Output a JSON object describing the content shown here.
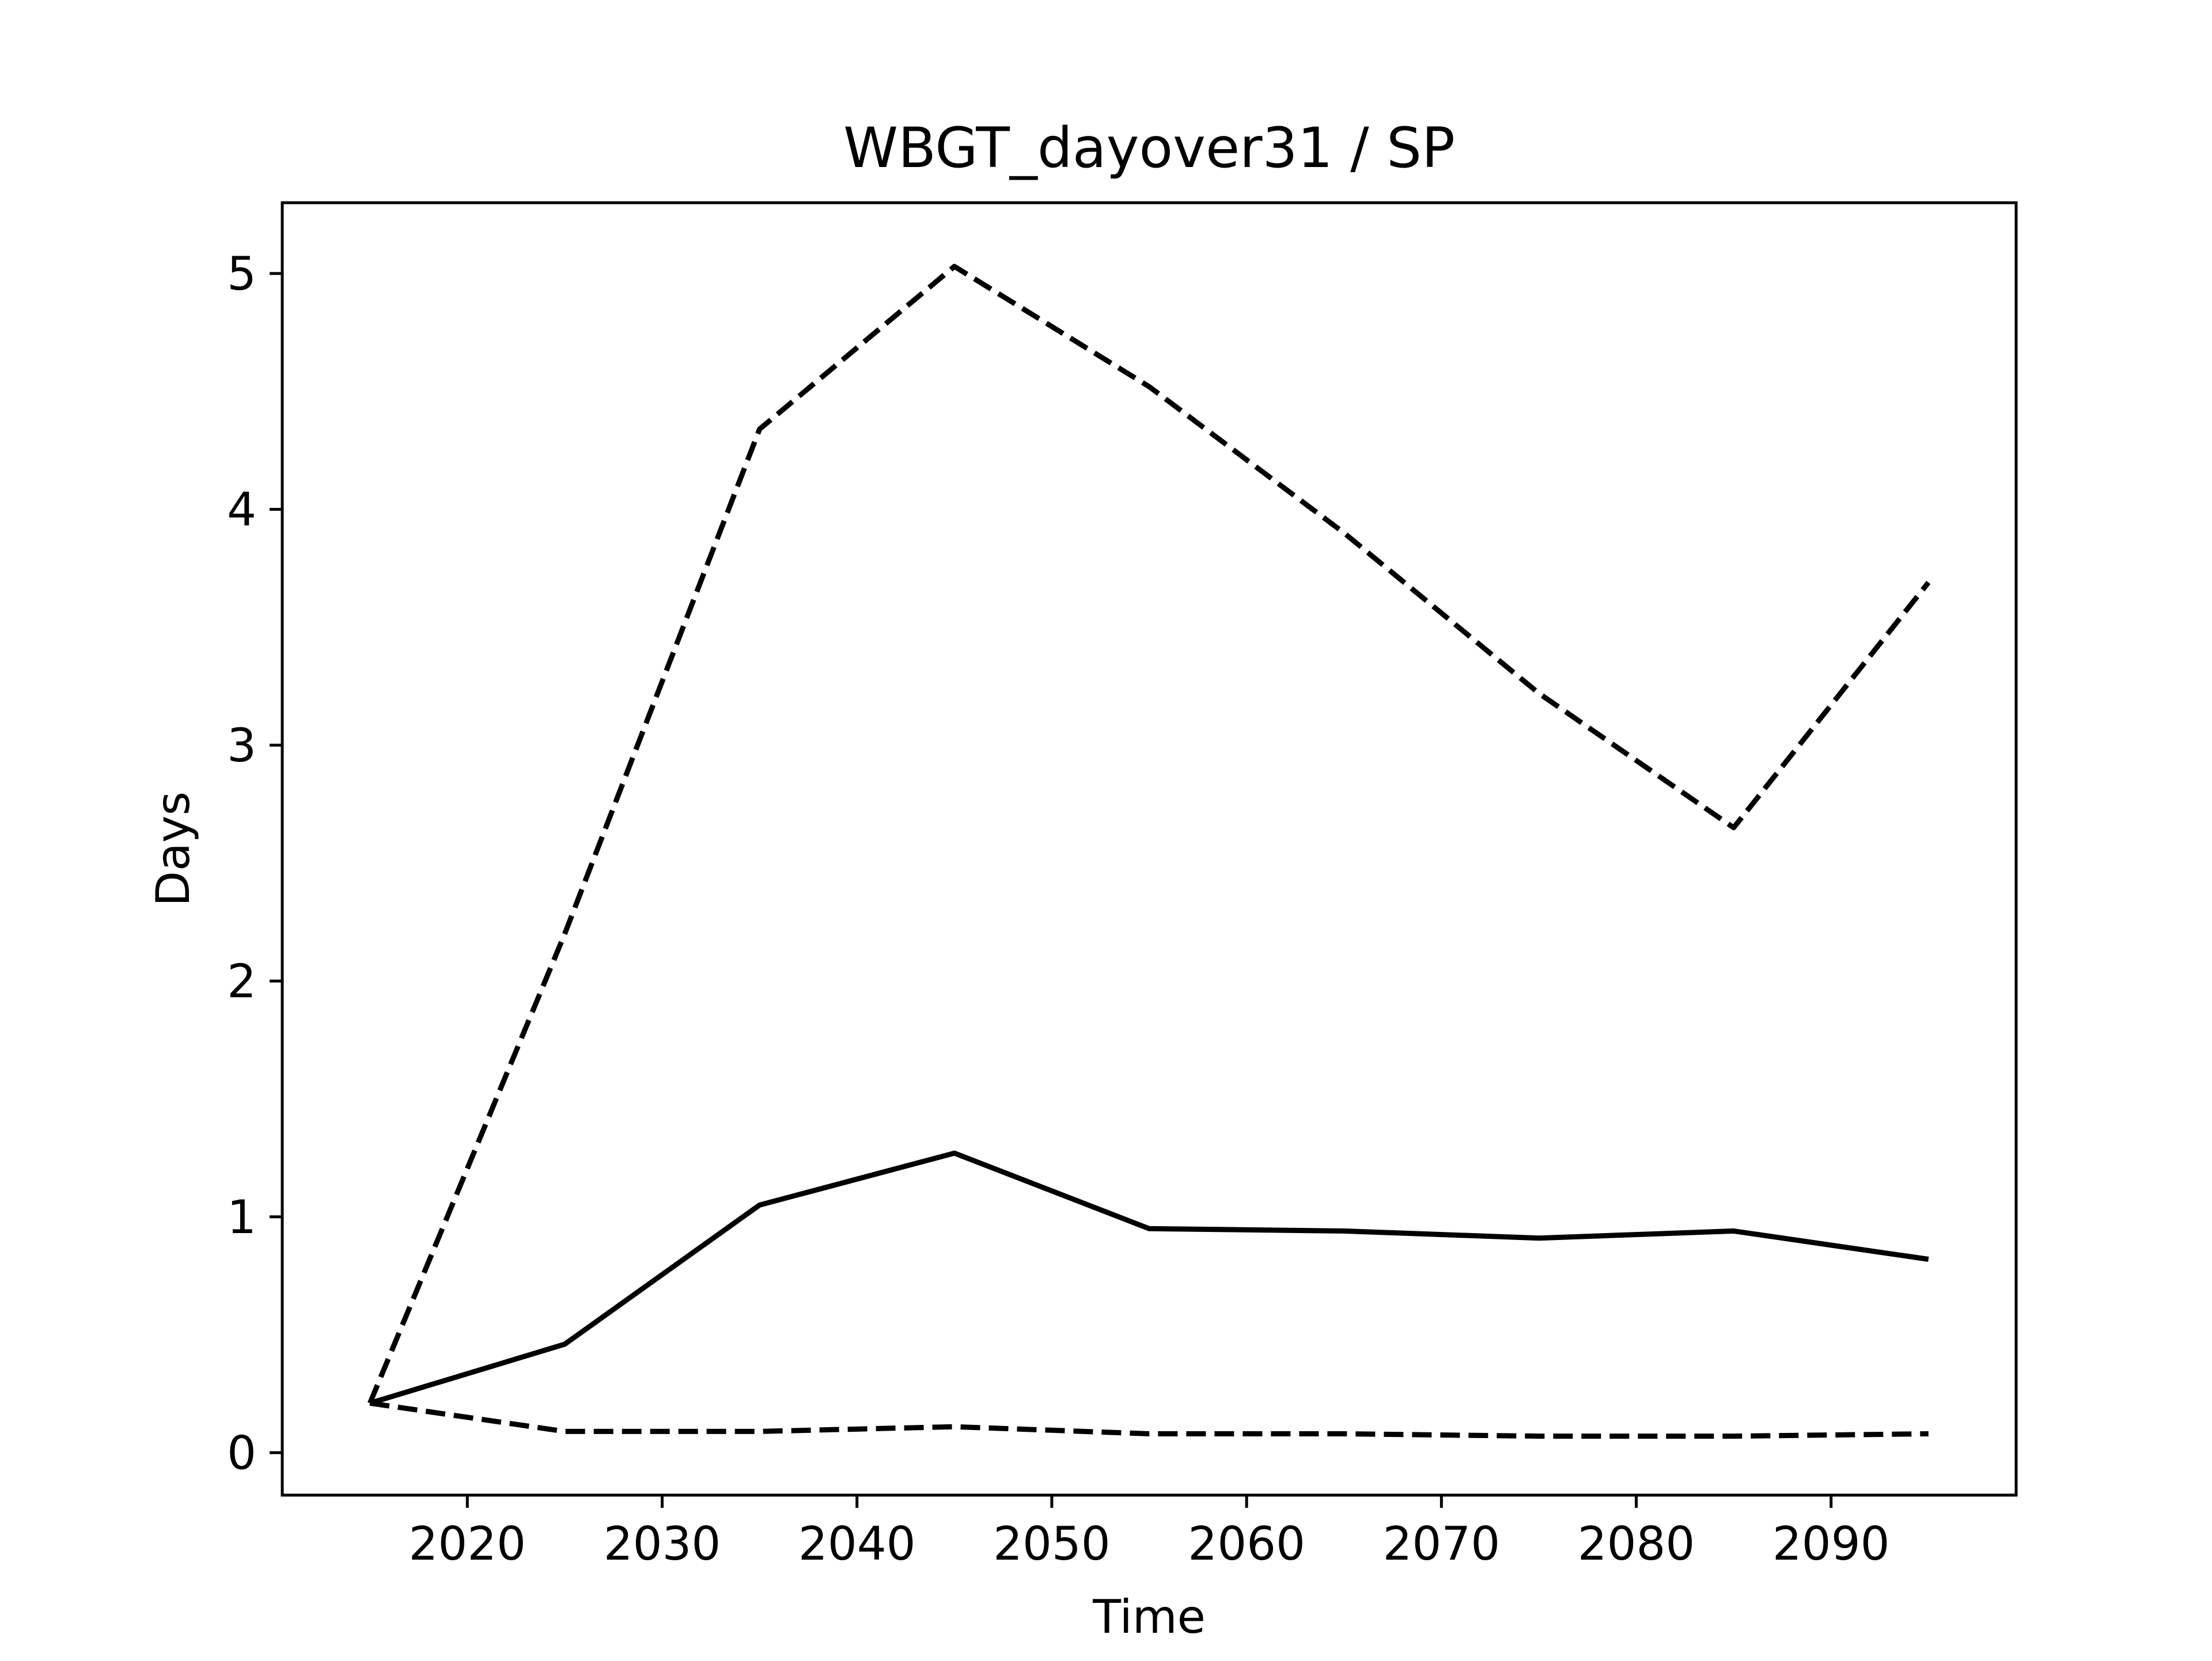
{
  "chart_data": {
    "type": "line",
    "title": "WBGT_dayover31 / SP",
    "xlabel": "Time",
    "ylabel": "Days",
    "xlim": [
      2010.5,
      2099.5
    ],
    "ylim": [
      -0.18,
      5.3
    ],
    "xticks": [
      2020,
      2030,
      2040,
      2050,
      2060,
      2070,
      2080,
      2090
    ],
    "yticks": [
      0,
      1,
      2,
      3,
      4,
      5
    ],
    "grid": false,
    "x": [
      2015,
      2025,
      2035,
      2045,
      2055,
      2065,
      2075,
      2085,
      2095
    ],
    "series": [
      {
        "style": "solid",
        "color": "#000000",
        "values": [
          0.21,
          0.46,
          1.05,
          1.27,
          0.95,
          0.94,
          0.91,
          0.94,
          0.82
        ]
      },
      {
        "style": "dashed",
        "color": "#000000",
        "values": [
          0.21,
          2.2,
          4.34,
          5.03,
          4.52,
          3.9,
          3.22,
          2.65,
          3.69
        ]
      },
      {
        "style": "dashed",
        "color": "#000000",
        "values": [
          0.21,
          0.09,
          0.09,
          0.11,
          0.08,
          0.08,
          0.07,
          0.07,
          0.08
        ]
      }
    ]
  }
}
